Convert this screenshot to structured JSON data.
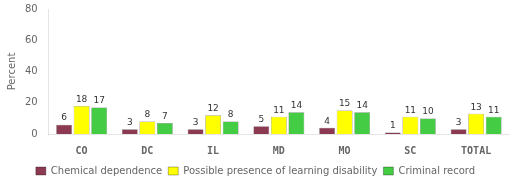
{
  "chart_data": {
    "type": "bar",
    "ylabel": "Percent",
    "categories": [
      "CO",
      "DC",
      "IL",
      "MD",
      "MO",
      "SC",
      "TOTAL"
    ],
    "series": [
      {
        "name": "Chemical dependence",
        "color": "#8b3a52",
        "values": [
          6,
          3,
          3,
          5,
          4,
          1,
          3
        ]
      },
      {
        "name": "Possible presence of learning disability",
        "color": "#ffff00",
        "values": [
          18,
          8,
          12,
          11,
          15,
          11,
          13
        ]
      },
      {
        "name": "Criminal record",
        "color": "#44cc44",
        "values": [
          17,
          7,
          8,
          14,
          14,
          10,
          11
        ]
      }
    ],
    "ylim": [
      0,
      80
    ],
    "yticks": [
      0,
      20,
      40,
      60,
      80
    ],
    "grid": false,
    "legend": "bottom",
    "data_labels": true
  }
}
